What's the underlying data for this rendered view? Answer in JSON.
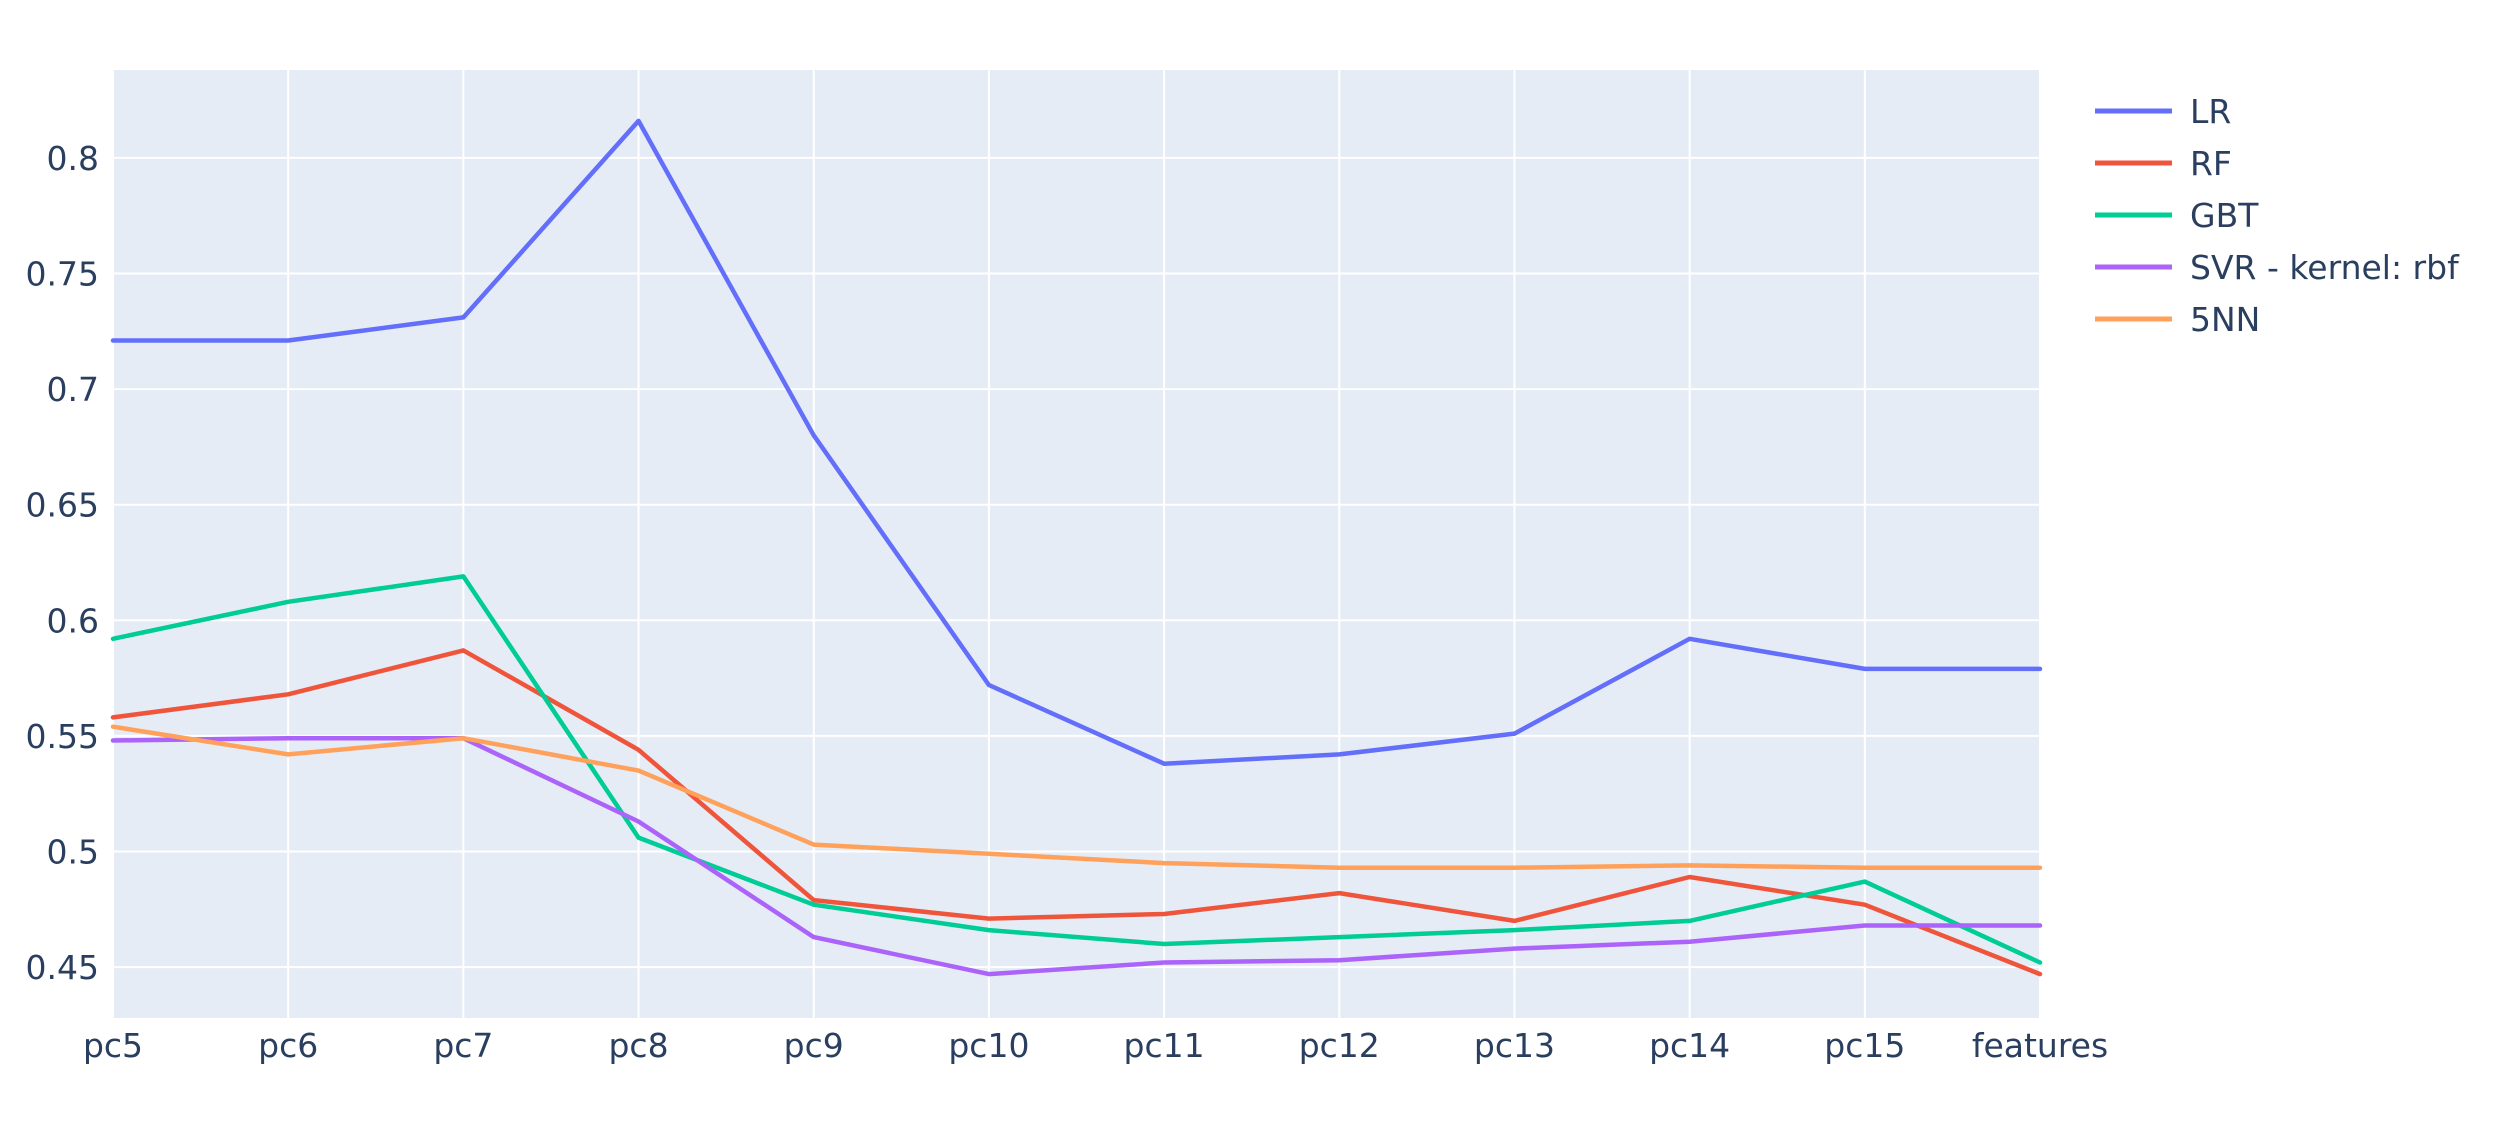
{
  "chart_data": {
    "type": "line",
    "categories": [
      "pc5",
      "pc6",
      "pc7",
      "pc8",
      "pc9",
      "pc10",
      "pc11",
      "pc12",
      "pc13",
      "pc14",
      "pc15",
      "features"
    ],
    "ylim": [
      0.428,
      0.838
    ],
    "yticks": [
      "0.45",
      "0.5",
      "0.55",
      "0.6",
      "0.65",
      "0.7",
      "0.75",
      "0.8"
    ],
    "grid": true,
    "legend_position": "top-right",
    "plot_background": "#e5ecf6",
    "series": [
      {
        "name": "LR",
        "color": "#636efa",
        "values": [
          0.721,
          0.721,
          0.731,
          0.816,
          0.68,
          0.572,
          0.538,
          0.542,
          0.551,
          0.592,
          0.579,
          0.579
        ]
      },
      {
        "name": "RF",
        "color": "#ef553b",
        "values": [
          0.558,
          0.568,
          0.587,
          0.544,
          0.479,
          0.471,
          0.473,
          0.482,
          0.47,
          0.489,
          0.477,
          0.447
        ]
      },
      {
        "name": "GBT",
        "color": "#00cc96",
        "values": [
          0.592,
          0.608,
          0.619,
          0.506,
          0.477,
          0.466,
          0.46,
          0.463,
          0.466,
          0.47,
          0.487,
          0.452
        ]
      },
      {
        "name": "SVR - kernel: rbf",
        "color": "#ab63fa",
        "values": [
          0.548,
          0.549,
          0.549,
          0.513,
          0.463,
          0.447,
          0.452,
          0.453,
          0.458,
          0.461,
          0.468,
          0.468
        ]
      },
      {
        "name": "5NN",
        "color": "#ffa15a",
        "values": [
          0.554,
          0.542,
          0.549,
          0.535,
          0.503,
          0.499,
          0.495,
          0.493,
          0.493,
          0.494,
          0.493,
          0.493
        ]
      }
    ]
  }
}
